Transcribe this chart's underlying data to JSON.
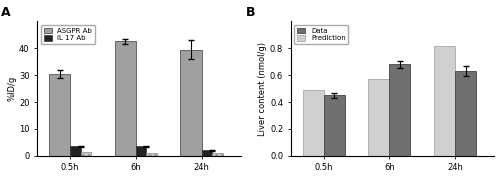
{
  "panel_A": {
    "title": "A",
    "xlabel_ticks": [
      "0.5h",
      "6h",
      "24h"
    ],
    "ylabel": "%ID/g",
    "ylim": [
      0,
      50
    ],
    "yticks": [
      0,
      10,
      20,
      30,
      40
    ],
    "ASGPR_values": [
      30.3,
      42.5,
      39.5
    ],
    "ASGPR_errors": [
      1.5,
      1.0,
      3.5
    ],
    "IL17_solid_values": [
      3.5,
      3.5,
      2.0
    ],
    "IL17_dotted_values": [
      1.5,
      1.0,
      1.0
    ],
    "IL17_errors": [
      0.3,
      0.2,
      0.2
    ],
    "ASGPR_color": "#a0a0a0",
    "IL17_solid_color": "#222222",
    "IL17_dotted_color": "#c8c8c8",
    "bar_width": 0.32,
    "legend_labels": [
      "ASGPR Ab",
      "IL 17 Ab"
    ]
  },
  "panel_B": {
    "title": "B",
    "xlabel_ticks": [
      "0.5h",
      "6h",
      "24h"
    ],
    "ylabel": "Liver content (nmol/g)",
    "ylim": [
      0.0,
      1.0
    ],
    "yticks": [
      0.0,
      0.2,
      0.4,
      0.6,
      0.8
    ],
    "prediction_values": [
      0.49,
      0.57,
      0.82
    ],
    "data_values": [
      0.45,
      0.68,
      0.63
    ],
    "data_errors": [
      0.02,
      0.025,
      0.04
    ],
    "data_color": "#707070",
    "prediction_color": "#d0d0d0",
    "bar_width": 0.32,
    "legend_labels": [
      "Data",
      "Prediction"
    ]
  },
  "bg_color": "#ffffff",
  "figure_bg": "#ffffff",
  "axes_bg": "#ffffff"
}
